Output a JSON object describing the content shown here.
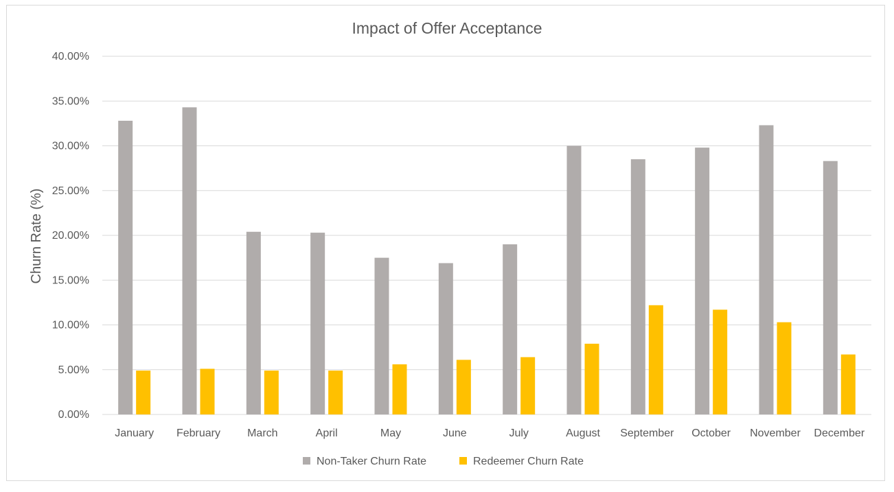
{
  "chart_data": {
    "type": "bar",
    "title": "Impact of Offer Acceptance",
    "xlabel": "",
    "ylabel": "Churn Rate (%)",
    "ylim": [
      0,
      0.4
    ],
    "y_ticks": [
      0,
      0.05,
      0.1,
      0.15,
      0.2,
      0.25,
      0.3,
      0.35,
      0.4
    ],
    "y_tick_labels": [
      "0.00%",
      "5.00%",
      "10.00%",
      "15.00%",
      "20.00%",
      "25.00%",
      "30.00%",
      "35.00%",
      "40.00%"
    ],
    "grid": true,
    "legend_position": "bottom",
    "categories": [
      "January",
      "February",
      "March",
      "April",
      "May",
      "June",
      "July",
      "August",
      "September",
      "October",
      "November",
      "December"
    ],
    "series": [
      {
        "name": "Non-Taker Churn Rate",
        "color": "#b0acab",
        "values": [
          0.328,
          0.343,
          0.204,
          0.203,
          0.175,
          0.169,
          0.19,
          0.3,
          0.285,
          0.298,
          0.323,
          0.283
        ]
      },
      {
        "name": "Redeemer Churn Rate",
        "color": "#ffc000",
        "values": [
          0.049,
          0.051,
          0.049,
          0.049,
          0.056,
          0.061,
          0.064,
          0.079,
          0.122,
          0.117,
          0.103,
          0.067
        ]
      }
    ],
    "colors": {
      "gridline": "#d9d9d9",
      "text": "#595959",
      "border": "#d9d9d9"
    }
  }
}
